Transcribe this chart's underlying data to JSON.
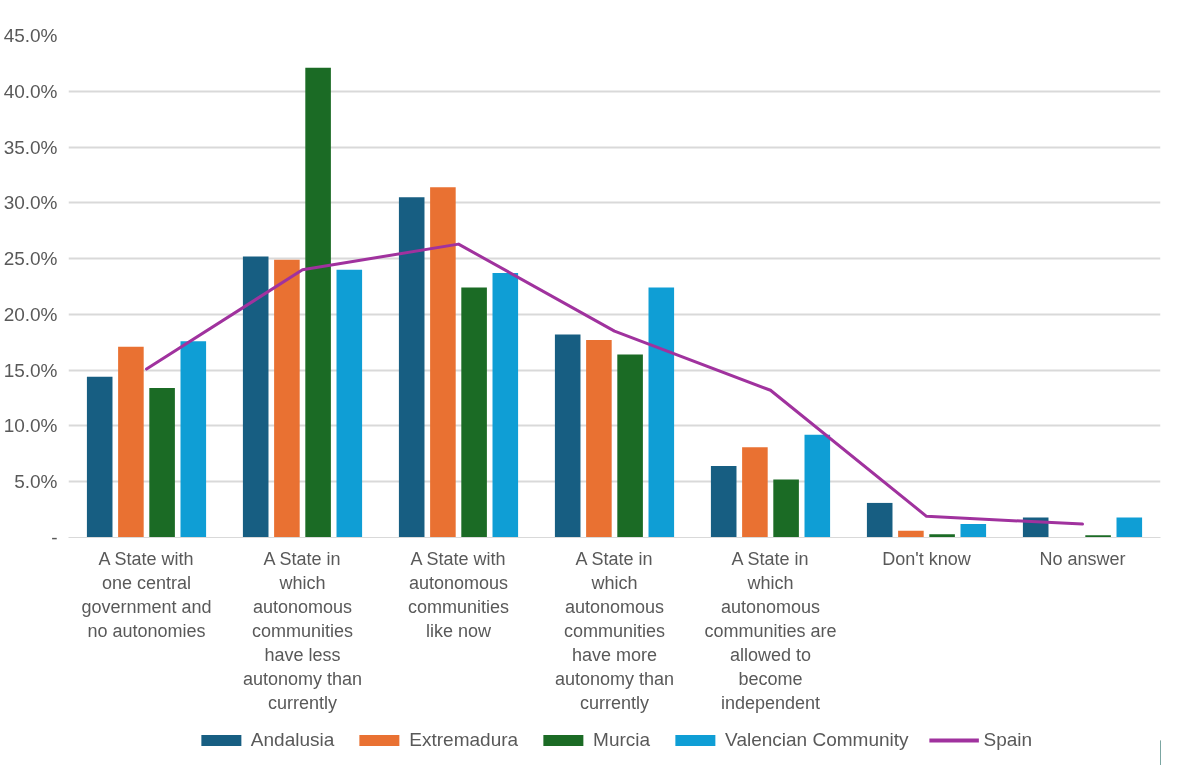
{
  "chart_data": {
    "type": "bar",
    "categories": [
      "A State with one central government and no autonomies",
      "A State in which autonomous communities have less autonomy than currently",
      "A State with autonomous communities like now",
      "A State in which autonomous communities have more autonomy than currently",
      "A State in which autonomous communities are allowed to become independent",
      "Don't know",
      "No answer"
    ],
    "series": [
      {
        "name": "Andalusia",
        "color": "#175e82",
        "values": [
          14.4,
          25.2,
          30.5,
          18.2,
          6.4,
          3.1,
          1.8
        ]
      },
      {
        "name": "Extremadura",
        "color": "#e97132",
        "values": [
          17.1,
          24.9,
          31.4,
          17.7,
          8.1,
          0.6,
          0.0
        ]
      },
      {
        "name": "Murcia",
        "color": "#1b6b25",
        "values": [
          13.4,
          42.1,
          22.4,
          16.4,
          5.2,
          0.3,
          0.2
        ]
      },
      {
        "name": "Valencian Community",
        "color": "#0f9ed5",
        "values": [
          17.6,
          24.0,
          23.7,
          22.4,
          9.2,
          1.2,
          1.8
        ]
      },
      {
        "name": "Spain",
        "color": "#a0329e",
        "type": "line",
        "values": [
          15.1,
          24.0,
          26.3,
          18.5,
          13.2,
          1.9,
          1.2
        ]
      }
    ],
    "ylim": [
      0,
      45
    ],
    "yticks": [
      {
        "value": 0,
        "label": "-"
      },
      {
        "value": 5,
        "label": "5.0%"
      },
      {
        "value": 10,
        "label": "10.0%"
      },
      {
        "value": 15,
        "label": "15.0%"
      },
      {
        "value": 20,
        "label": "20.0%"
      },
      {
        "value": 25,
        "label": "25.0%"
      },
      {
        "value": 30,
        "label": "30.0%"
      },
      {
        "value": 35,
        "label": "35.0%"
      },
      {
        "value": 40,
        "label": "40.0%"
      },
      {
        "value": 45,
        "label": "45.0%"
      }
    ],
    "grid": "y",
    "legend": "bottom",
    "marker": "none",
    "line_style": "solid"
  }
}
